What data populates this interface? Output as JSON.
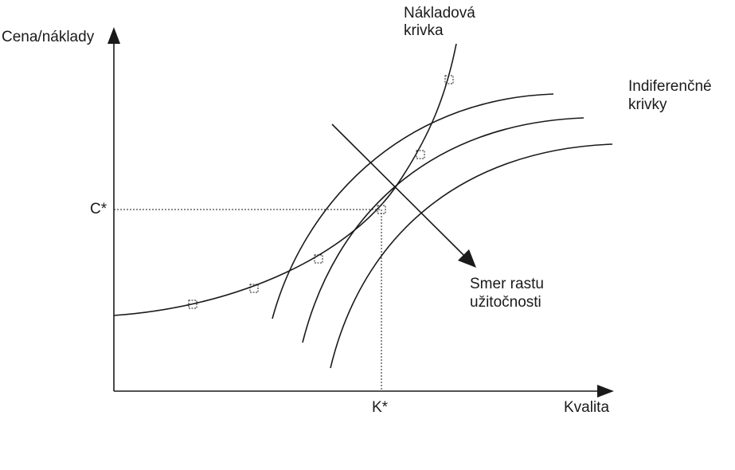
{
  "axes": {
    "y_label": "Cena/náklady",
    "x_label": "Kvalita"
  },
  "markers": {
    "c_star": "C*",
    "k_star": "K*"
  },
  "curves": {
    "cost_curve_label_line1": "Nákladová",
    "cost_curve_label_line2": "krivka",
    "indifference_label_line1": "Indiferenčné",
    "indifference_label_line2": "krivky"
  },
  "utility": {
    "label_line1": "Smer rastu",
    "label_line2": "užitočnosti"
  },
  "colors": {
    "line": "#1a1a1a",
    "background": "#ffffff"
  }
}
